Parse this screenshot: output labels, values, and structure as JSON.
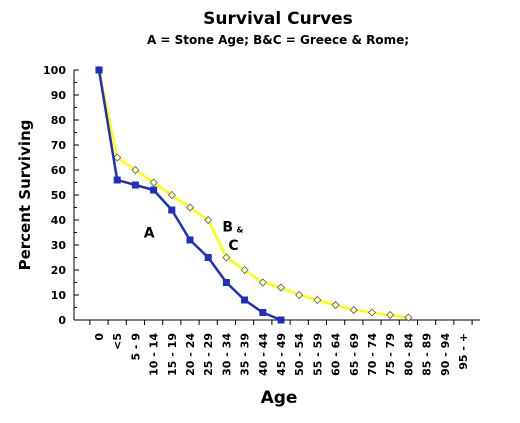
{
  "chart_data": {
    "type": "line",
    "title": "Survival Curves",
    "subtitle": "A = Stone Age; B&C = Greece & Rome;",
    "xlabel": "Age",
    "ylabel": "Percent Surviving",
    "categories": [
      "0",
      "<5",
      "5 - 9",
      "10 - 14",
      "15 - 19",
      "20 - 24",
      "25 - 29",
      "30 - 34",
      "35 - 39",
      "40 - 44",
      "45 - 49",
      "50 - 54",
      "55 - 59",
      "60 - 64",
      "65 - 69",
      "70 - 74",
      "75 - 79",
      "80 - 84",
      "85 - 89",
      "90 - 94",
      "95 - +"
    ],
    "ylim": [
      0,
      100
    ],
    "yticks": [
      0,
      10,
      20,
      30,
      40,
      50,
      60,
      70,
      80,
      90,
      100
    ],
    "grid": false,
    "legend": "none",
    "series": [
      {
        "name": "A",
        "color": "#1f2fbf",
        "marker": "square",
        "values": [
          100,
          56,
          54,
          52,
          44,
          32,
          25,
          15,
          8,
          3,
          0,
          null,
          null,
          null,
          null,
          null,
          null,
          null,
          null,
          null,
          null
        ]
      },
      {
        "name": "B & C",
        "color": "#ffff00",
        "marker": "diamond",
        "values": [
          100,
          65,
          60,
          55,
          50,
          45,
          40,
          25,
          20,
          15,
          13,
          10,
          8,
          6,
          4,
          3,
          2,
          1,
          null,
          null,
          null
        ]
      }
    ],
    "annotations": [
      {
        "text": "A",
        "x": "15 - 19",
        "y": 33
      },
      {
        "text": "B",
        "x": "30 - 34",
        "y": 35.5
      },
      {
        "text": "&",
        "x": "30 - 34",
        "y": 35
      },
      {
        "text": "C",
        "x": "30 - 34",
        "y": 28
      }
    ]
  }
}
